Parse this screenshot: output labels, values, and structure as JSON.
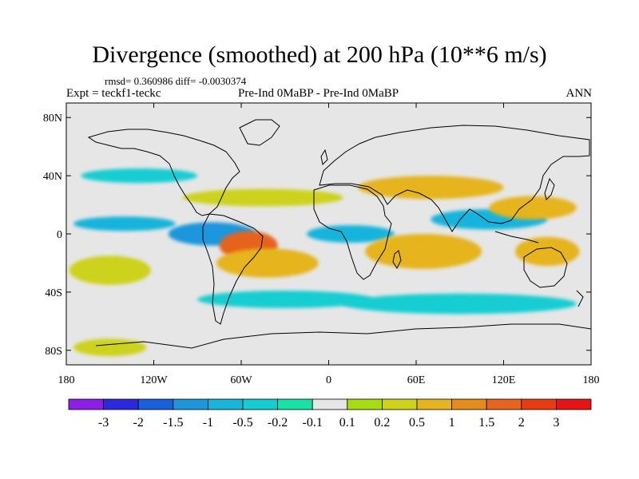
{
  "title": "Divergence (smoothed) at 200 hPa (10**6 m/s)",
  "stats": "rmsd= 0.360986 diff= -0.0030374",
  "experiment": "Expt = teckf1-teckc",
  "comparison": "Pre-Ind 0MaBP - Pre-Ind 0MaBP",
  "season": "ANN",
  "axes": {
    "lon_range": [
      -180,
      180
    ],
    "lat_range": [
      -90,
      90
    ],
    "y_ticks": [
      {
        "value": 80,
        "label": "80N"
      },
      {
        "value": 40,
        "label": "40N"
      },
      {
        "value": 0,
        "label": "0"
      },
      {
        "value": -40,
        "label": "40S"
      },
      {
        "value": -80,
        "label": "80S"
      }
    ],
    "x_ticks": [
      {
        "value": -180,
        "label": "180"
      },
      {
        "value": -120,
        "label": "120W"
      },
      {
        "value": -60,
        "label": "60W"
      },
      {
        "value": 0,
        "label": "0"
      },
      {
        "value": 60,
        "label": "60E"
      },
      {
        "value": 120,
        "label": "120E"
      },
      {
        "value": 180,
        "label": "180"
      }
    ]
  },
  "colorbar": {
    "colors": [
      "#8c1ee6",
      "#2e28dc",
      "#1a5fdc",
      "#1e96dc",
      "#18b4dc",
      "#14cdd2",
      "#1ae1a5",
      "#e6e6e6",
      "#a5dc14",
      "#cdd21a",
      "#e6b41e",
      "#e68c1e",
      "#e6641e",
      "#e63c14",
      "#e61414"
    ],
    "labels": [
      "-3",
      "-2",
      "-1.5",
      "-1",
      "-0.5",
      "-0.2",
      "-0.1",
      "0.1",
      "0.2",
      "0.5",
      "1",
      "1.5",
      "2",
      "3"
    ]
  },
  "chart_data": {
    "type": "heatmap",
    "title": "Divergence (smoothed) at 200 hPa (10**6 m/s)",
    "variable": "200 hPa divergence difference (smoothed)",
    "units": "10**6 m/s",
    "levels": [
      -3,
      -2,
      -1.5,
      -1,
      -0.5,
      -0.2,
      -0.1,
      0.1,
      0.2,
      0.5,
      1,
      1.5,
      2,
      3
    ],
    "xlabel": "",
    "ylabel": "",
    "approximate_features": [
      {
        "lon": -80,
        "lat": 0,
        "width": 30,
        "height": 8,
        "value": -1.2
      },
      {
        "lon": -140,
        "lat": 7,
        "width": 35,
        "height": 5,
        "value": -0.6
      },
      {
        "lon": 15,
        "lat": 0,
        "width": 30,
        "height": 6,
        "value": -1.0
      },
      {
        "lon": 110,
        "lat": 10,
        "width": 40,
        "height": 7,
        "value": -0.6
      },
      {
        "lon": -55,
        "lat": -8,
        "width": 20,
        "height": 10,
        "value": 1.5
      },
      {
        "lon": -42,
        "lat": -20,
        "width": 35,
        "height": 10,
        "value": 0.8
      },
      {
        "lon": 65,
        "lat": -12,
        "width": 40,
        "height": 12,
        "value": 0.6
      },
      {
        "lon": 150,
        "lat": -12,
        "width": 22,
        "height": 10,
        "value": 0.7
      },
      {
        "lon": 140,
        "lat": 18,
        "width": 30,
        "height": 8,
        "value": 0.6
      },
      {
        "lon": 70,
        "lat": 32,
        "width": 50,
        "height": 8,
        "value": 0.5
      },
      {
        "lon": -45,
        "lat": 25,
        "width": 55,
        "height": 6,
        "value": 0.3
      },
      {
        "lon": -150,
        "lat": -25,
        "width": 28,
        "height": 10,
        "value": 0.4
      },
      {
        "lon": -150,
        "lat": -78,
        "width": 25,
        "height": 6,
        "value": 0.3
      },
      {
        "lon": -130,
        "lat": 40,
        "width": 40,
        "height": 5,
        "value": -0.3
      },
      {
        "lon": -30,
        "lat": -45,
        "width": 60,
        "height": 6,
        "value": -0.3
      },
      {
        "lon": 90,
        "lat": -48,
        "width": 80,
        "height": 7,
        "value": -0.3
      }
    ]
  }
}
